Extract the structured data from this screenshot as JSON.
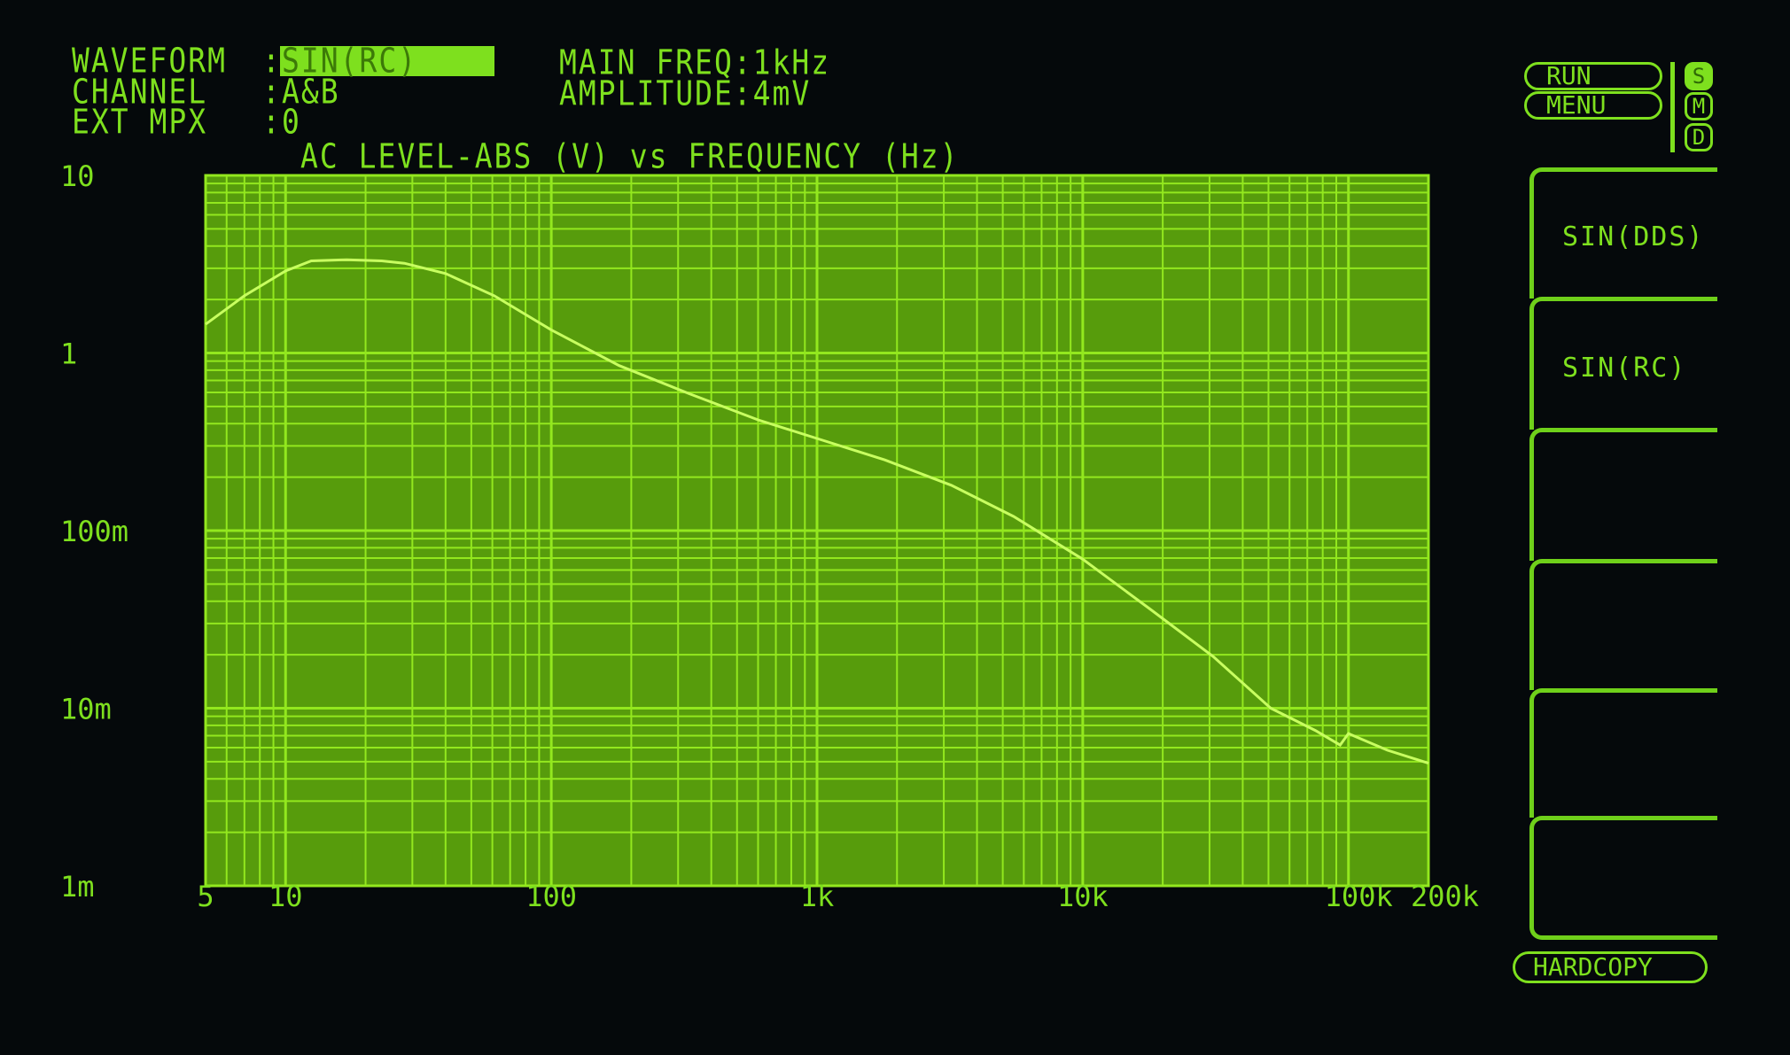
{
  "header": {
    "waveform_label": "WAVEFORM",
    "waveform_value": "SIN(RC)",
    "channel_label": "CHANNEL",
    "channel_value": "A&B",
    "extmpx_label": "EXT MPX",
    "extmpx_value": "0",
    "colon": ":",
    "main_freq": "MAIN FREQ:1kHz",
    "amplitude": "AMPLITUDE:4mV"
  },
  "controls": {
    "run": "RUN",
    "menu": "MENU",
    "indicators": [
      "S",
      "M",
      "D"
    ],
    "active_indicator": "S",
    "hardcopy": "HARDCOPY"
  },
  "softkeys": [
    "SIN(DDS)",
    "SIN(RC)",
    "",
    "",
    "",
    ""
  ],
  "colors": {
    "background": "#05090b",
    "plot_fill": "#579c0c",
    "grid": "#93e81e",
    "text": "#7ee01e"
  },
  "chart_data": {
    "type": "line",
    "title": "AC LEVEL-ABS (V) vs FREQUENCY (Hz)",
    "x_scale": "log",
    "y_scale": "log",
    "xlim": [
      5,
      200000
    ],
    "ylim": [
      0.001,
      10
    ],
    "grid": true,
    "x_ticks": [
      {
        "v": 5,
        "label": "5"
      },
      {
        "v": 10,
        "label": "10"
      },
      {
        "v": 100,
        "label": "100"
      },
      {
        "v": 1000,
        "label": "1k"
      },
      {
        "v": 10000,
        "label": "10k"
      },
      {
        "v": 100000,
        "label": "100k"
      },
      {
        "v": 200000,
        "label": "200k"
      }
    ],
    "y_ticks": [
      {
        "v": 10,
        "label": "10"
      },
      {
        "v": 1,
        "label": "1"
      },
      {
        "v": 0.1,
        "label": "100m"
      },
      {
        "v": 0.01,
        "label": "10m"
      },
      {
        "v": 0.001,
        "label": "1m"
      }
    ],
    "series": [
      {
        "x": [
          5,
          7,
          10,
          12.5,
          17,
          23,
          28,
          40,
          61,
          100,
          180,
          330,
          600,
          1000,
          1800,
          3200,
          5500,
          10000,
          18000,
          31000,
          51000,
          75000,
          93000,
          100000,
          140000,
          200000
        ],
        "y": [
          1.45,
          2.1,
          2.9,
          3.3,
          3.35,
          3.3,
          3.2,
          2.8,
          2.1,
          1.35,
          0.85,
          0.59,
          0.42,
          0.33,
          0.25,
          0.18,
          0.12,
          0.069,
          0.036,
          0.0195,
          0.01,
          0.0075,
          0.0062,
          0.0072,
          0.0058,
          0.0049
        ]
      }
    ]
  }
}
